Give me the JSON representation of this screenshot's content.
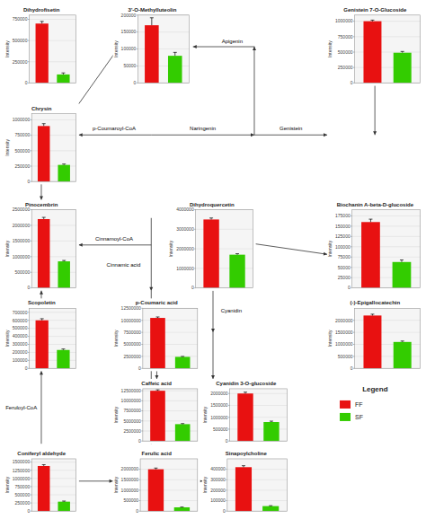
{
  "chart_data": [
    {
      "type": "bar",
      "title": "Dihydrofisetin",
      "ylabel": "Intensity",
      "categories": [
        null
      ],
      "series": [
        {
          "name": "FF",
          "color": "#e81111",
          "values": [
            700000
          ],
          "errors": [
            25000
          ]
        },
        {
          "name": "SF",
          "color": "#33cc00",
          "values": [
            100000
          ],
          "errors": [
            18000
          ]
        }
      ],
      "ylim": [
        0,
        800000
      ],
      "yticks": [
        0,
        250000,
        500000,
        750000
      ],
      "grid": true,
      "tick_labels": "y"
    },
    {
      "type": "bar",
      "title": "3'-O-Methylluteolin",
      "ylabel": "Intensity",
      "categories": [
        null
      ],
      "series": [
        {
          "name": "FF",
          "color": "#e81111",
          "values": [
            170000
          ],
          "errors": [
            22000
          ]
        },
        {
          "name": "SF",
          "color": "#33cc00",
          "values": [
            80000
          ],
          "errors": [
            10000
          ]
        }
      ],
      "ylim": [
        0,
        200000
      ],
      "yticks": [
        0,
        50000,
        100000,
        150000,
        200000
      ],
      "grid": true,
      "tick_labels": "y"
    },
    {
      "type": "bar",
      "title": "Genistein 7-O-Glucoside",
      "ylabel": "Intensity",
      "categories": [
        null
      ],
      "series": [
        {
          "name": "FF",
          "color": "#e81111",
          "values": [
            1000000
          ],
          "errors": [
            18000
          ]
        },
        {
          "name": "SF",
          "color": "#33cc00",
          "values": [
            490000
          ],
          "errors": [
            20000
          ]
        }
      ],
      "ylim": [
        0,
        1100000
      ],
      "yticks": [
        0,
        250000,
        500000,
        750000,
        1000000
      ],
      "grid": true,
      "tick_labels": "y"
    },
    {
      "type": "bar",
      "title": "Chrysin",
      "ylabel": "Intensity",
      "categories": [
        null
      ],
      "series": [
        {
          "name": "FF",
          "color": "#e81111",
          "values": [
            900000
          ],
          "errors": [
            38000
          ]
        },
        {
          "name": "SF",
          "color": "#33cc00",
          "values": [
            270000
          ],
          "errors": [
            14000
          ]
        }
      ],
      "ylim": [
        0,
        1100000
      ],
      "yticks": [
        0,
        250000,
        500000,
        750000,
        1000000
      ],
      "grid": true,
      "tick_labels": "y"
    },
    {
      "type": "bar",
      "title": "Pinocembrin",
      "ylabel": "Intensity",
      "categories": [
        null
      ],
      "series": [
        {
          "name": "FF",
          "color": "#e81111",
          "values": [
            2200000
          ],
          "errors": [
            55000
          ]
        },
        {
          "name": "SF",
          "color": "#33cc00",
          "values": [
            850000
          ],
          "errors": [
            28000
          ]
        }
      ],
      "ylim": [
        0,
        2500000
      ],
      "yticks": [
        0,
        500000,
        1000000,
        1500000,
        2000000,
        2500000
      ],
      "grid": true,
      "tick_labels": "y"
    },
    {
      "type": "bar",
      "title": "Dihydroquercetin",
      "ylabel": "Intensity",
      "categories": [
        null
      ],
      "series": [
        {
          "name": "FF",
          "color": "#e81111",
          "values": [
            3500000
          ],
          "errors": [
            75000
          ]
        },
        {
          "name": "SF",
          "color": "#33cc00",
          "values": [
            1700000
          ],
          "errors": [
            50000
          ]
        }
      ],
      "ylim": [
        0,
        4000000
      ],
      "yticks": [
        0,
        1000000,
        2000000,
        3000000,
        4000000
      ],
      "grid": true,
      "tick_labels": "y"
    },
    {
      "type": "bar",
      "title": "Biochanin A-beta-D-glucoside",
      "ylabel": "Intensity",
      "categories": [
        null
      ],
      "series": [
        {
          "name": "FF",
          "color": "#e81111",
          "values": [
            160000
          ],
          "errors": [
            7000
          ]
        },
        {
          "name": "SF",
          "color": "#33cc00",
          "values": [
            63000
          ],
          "errors": [
            5000
          ]
        }
      ],
      "ylim": [
        0,
        190000
      ],
      "yticks": [
        0,
        25000,
        50000,
        75000,
        100000,
        125000,
        150000,
        175000
      ],
      "grid": true,
      "tick_labels": "y"
    },
    {
      "type": "bar",
      "title": "Scopoletin",
      "ylabel": "Intensity",
      "categories": [
        null
      ],
      "series": [
        {
          "name": "FF",
          "color": "#e81111",
          "values": [
            600000
          ],
          "errors": [
            20000
          ]
        },
        {
          "name": "SF",
          "color": "#33cc00",
          "values": [
            230000
          ],
          "errors": [
            12000
          ]
        }
      ],
      "ylim": [
        0,
        750000
      ],
      "yticks": [
        0,
        100000,
        200000,
        300000,
        400000,
        500000,
        600000,
        700000
      ],
      "grid": true,
      "tick_labels": "y"
    },
    {
      "type": "bar",
      "title": "p-Coumaric acid",
      "ylabel": "Intensity",
      "categories": [
        null
      ],
      "series": [
        {
          "name": "FF",
          "color": "#e81111",
          "values": [
            10500000
          ],
          "errors": [
            200000
          ]
        },
        {
          "name": "SF",
          "color": "#33cc00",
          "values": [
            2400000
          ],
          "errors": [
            90000
          ]
        }
      ],
      "ylim": [
        0,
        12500000
      ],
      "yticks": [
        0,
        2500000,
        5000000,
        7500000,
        10000000,
        12500000
      ],
      "grid": true,
      "tick_labels": "y"
    },
    {
      "type": "bar",
      "title": "(-)-Epigallocatechin",
      "ylabel": "Intensity",
      "categories": [
        null
      ],
      "series": [
        {
          "name": "FF",
          "color": "#e81111",
          "values": [
            2200000
          ],
          "errors": [
            55000
          ]
        },
        {
          "name": "SF",
          "color": "#33cc00",
          "values": [
            1100000
          ],
          "errors": [
            38000
          ]
        }
      ],
      "ylim": [
        0,
        2500000
      ],
      "yticks": [
        0,
        500000,
        1000000,
        1500000,
        2000000
      ],
      "grid": true,
      "tick_labels": "y"
    },
    {
      "type": "bar",
      "title": "Caffeic acid",
      "ylabel": "Intensity",
      "categories": [
        null
      ],
      "series": [
        {
          "name": "FF",
          "color": "#e81111",
          "values": [
            12500000
          ],
          "errors": [
            240000
          ]
        },
        {
          "name": "SF",
          "color": "#33cc00",
          "values": [
            4200000
          ],
          "errors": [
            140000
          ]
        }
      ],
      "ylim": [
        0,
        13000000
      ],
      "yticks": [
        0,
        2500000,
        5000000,
        7500000,
        10000000,
        12500000
      ],
      "grid": true,
      "tick_labels": "y"
    },
    {
      "type": "bar",
      "title": "Cyanidin 3-O-glucoside",
      "ylabel": "Intensity",
      "categories": [
        null
      ],
      "series": [
        {
          "name": "FF",
          "color": "#e81111",
          "values": [
            2000000
          ],
          "errors": [
            55000
          ]
        },
        {
          "name": "SF",
          "color": "#33cc00",
          "values": [
            800000
          ],
          "errors": [
            38000
          ]
        }
      ],
      "ylim": [
        0,
        2200000
      ],
      "yticks": [
        0,
        500000,
        1000000,
        1500000,
        2000000
      ],
      "grid": true,
      "tick_labels": "y"
    },
    {
      "type": "bar",
      "title": "Coniferyl aldehyde",
      "ylabel": "Intensity",
      "categories": [
        null
      ],
      "series": [
        {
          "name": "FF",
          "color": "#e81111",
          "values": [
            1380000
          ],
          "errors": [
            40000
          ]
        },
        {
          "name": "SF",
          "color": "#33cc00",
          "values": [
            290000
          ],
          "errors": [
            18000
          ]
        }
      ],
      "ylim": [
        0,
        1600000
      ],
      "yticks": [
        0,
        250000,
        500000,
        750000,
        1000000,
        1250000,
        1500000
      ],
      "grid": true,
      "tick_labels": "y"
    },
    {
      "type": "bar",
      "title": "Ferulic acid",
      "ylabel": "Intensity",
      "categories": [
        null
      ],
      "series": [
        {
          "name": "FF",
          "color": "#e81111",
          "values": [
            2000000
          ],
          "errors": [
            58000
          ]
        },
        {
          "name": "SF",
          "color": "#33cc00",
          "values": [
            180000
          ],
          "errors": [
            14000
          ]
        }
      ],
      "ylim": [
        0,
        2500000
      ],
      "yticks": [
        0,
        500000,
        1000000,
        1500000,
        2000000
      ],
      "grid": true,
      "tick_labels": "y"
    },
    {
      "type": "bar",
      "title": "Sinapoylcholine",
      "ylabel": "Intensity",
      "categories": [
        null
      ],
      "series": [
        {
          "name": "FF",
          "color": "#e81111",
          "values": [
            420000
          ],
          "errors": [
            14000
          ]
        },
        {
          "name": "SF",
          "color": "#33cc00",
          "values": [
            48000
          ],
          "errors": [
            4000
          ]
        }
      ],
      "ylim": [
        0,
        500000
      ],
      "yticks": [
        0,
        100000,
        200000,
        300000,
        400000
      ],
      "grid": true,
      "tick_labels": "y"
    }
  ],
  "annotations": [
    "Apigenin",
    "Naringenin",
    "Genistein",
    "p-Coumaroyl-CoA",
    "Cinnamoyl-CoA",
    "Cinnamic acid",
    "Cyanidin",
    "Feruloyl-CoA"
  ],
  "legend_title": "Legend"
}
